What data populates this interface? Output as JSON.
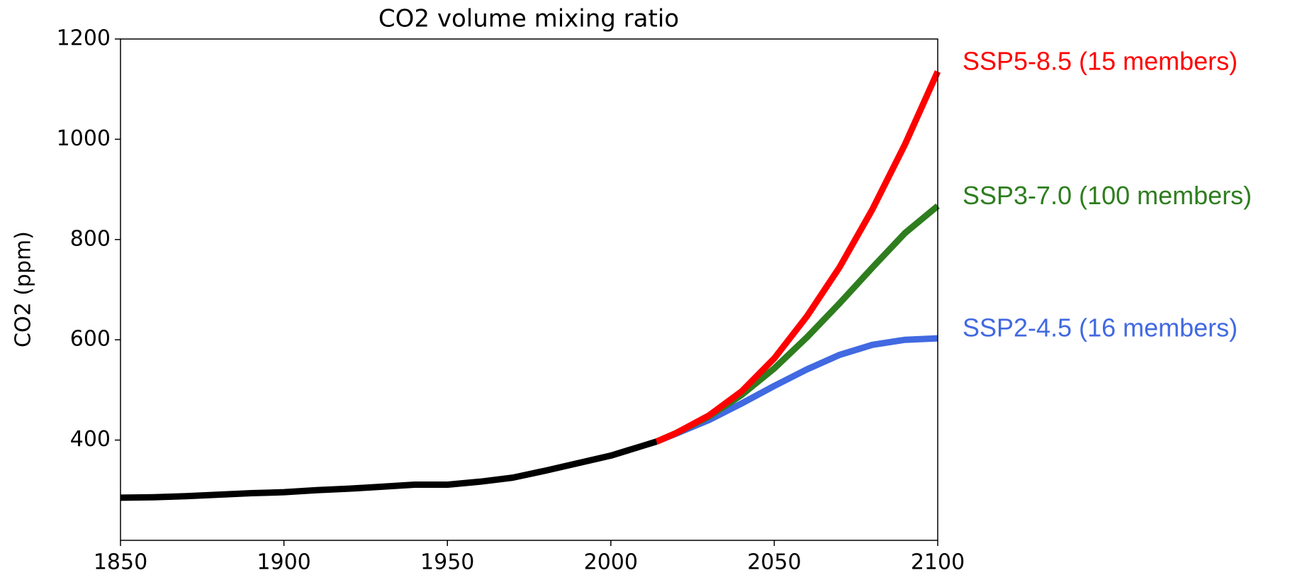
{
  "chart_data": {
    "type": "line",
    "title": "CO2 volume mixing ratio",
    "y_label": "CO2 (ppm)",
    "xlim": [
      1850,
      2100
    ],
    "xticks": [
      1850,
      1900,
      1950,
      2000,
      2050,
      2100
    ],
    "ylim": [
      200,
      1200
    ],
    "yticks": [
      400,
      600,
      800,
      1000,
      1200
    ],
    "series": [
      {
        "name": "SSP2-4.5 (16 members)",
        "color": "#4169e1",
        "x": [
          2014,
          2020,
          2030,
          2040,
          2050,
          2060,
          2070,
          2080,
          2090,
          2100
        ],
        "values": [
          397,
          413,
          440,
          473,
          508,
          541,
          570,
          590,
          600,
          603
        ]
      },
      {
        "name": "SSP3-7.0 (100 members)",
        "color": "#2e7d1e",
        "x": [
          2014,
          2020,
          2030,
          2040,
          2050,
          2060,
          2070,
          2080,
          2090,
          2100
        ],
        "values": [
          397,
          414,
          447,
          490,
          543,
          605,
          673,
          744,
          813,
          867
        ]
      },
      {
        "name": "SSP5-8.5 (15 members)",
        "color": "#ff0000",
        "x": [
          2014,
          2020,
          2030,
          2040,
          2050,
          2060,
          2070,
          2080,
          2090,
          2100
        ],
        "values": [
          397,
          414,
          449,
          497,
          563,
          647,
          745,
          860,
          990,
          1135
        ]
      },
      {
        "color": "#000000",
        "x": [
          1850,
          1860,
          1870,
          1880,
          1890,
          1900,
          1910,
          1920,
          1930,
          1940,
          1950,
          1960,
          1970,
          1980,
          1990,
          2000,
          2010,
          2014
        ],
        "values": [
          285,
          286,
          288,
          291,
          294,
          296,
          300,
          303,
          307,
          311,
          311,
          317,
          325,
          339,
          354,
          369,
          389,
          397
        ]
      }
    ]
  }
}
